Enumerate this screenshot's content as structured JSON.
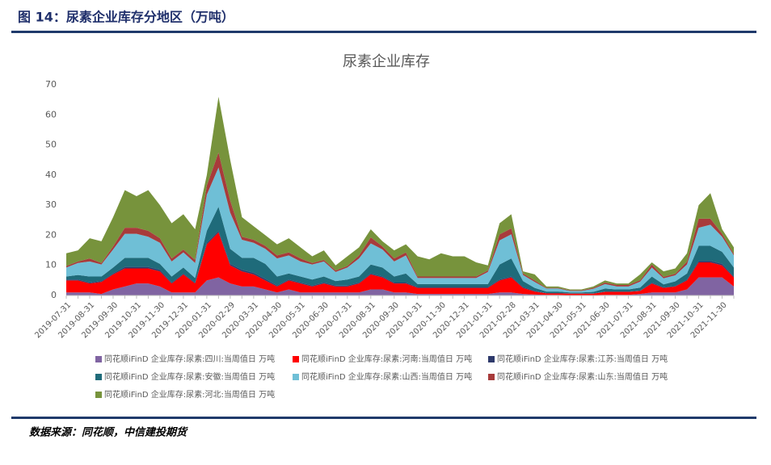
{
  "header": {
    "title": "图 14：尿素企业库存分地区（万吨）"
  },
  "footer": {
    "source": "数据来源：同花顺，中信建投期货"
  },
  "chart_data": {
    "type": "stacked_area",
    "title": "尿素企业库存",
    "categories": [
      "2019-07-31",
      null,
      "2019-08-31",
      null,
      "2019-09-30",
      null,
      "2019-10-31",
      null,
      "2019-11-30",
      null,
      "2019-12-31",
      null,
      "2020-01-31",
      null,
      "2020-02-29",
      null,
      "2020-03-31",
      null,
      "2020-04-30",
      null,
      "2020-05-31",
      null,
      "2020-06-30",
      null,
      "2020-07-31",
      null,
      "2020-08-31",
      null,
      "2020-09-30",
      null,
      "2020-10-31",
      null,
      "2020-11-30",
      null,
      "2020-12-31",
      null,
      "2021-01-31",
      null,
      "2021-02-28",
      null,
      "2021-03-31",
      null,
      "2021-04-30",
      null,
      "2021-05-31",
      null,
      "2021-06-30",
      null,
      "2021-07-31",
      null,
      "2021-08-31",
      null,
      "2021-09-30",
      null,
      "2021-10-31",
      null,
      "2021-11-30",
      null
    ],
    "ylim": [
      0,
      70
    ],
    "yticks": [
      0,
      10,
      20,
      30,
      40,
      50,
      60,
      70
    ],
    "legend": "bottom",
    "series": [
      {
        "name": "同花顺iFinD 企业库存:尿素:四川:当周值日 万吨",
        "color": "#8064a2",
        "values": [
          1,
          1,
          1,
          0.5,
          2,
          3,
          4,
          4,
          3,
          1,
          1,
          1,
          5,
          6,
          4,
          3,
          3,
          2,
          1,
          2,
          1,
          1,
          1,
          1,
          1,
          1,
          2,
          2,
          1,
          1,
          0.5,
          0.5,
          0.5,
          0.5,
          0.5,
          0.5,
          0.5,
          1,
          1,
          0.5,
          0.3,
          0.2,
          0.2,
          0.1,
          0.1,
          0.1,
          0.2,
          0.2,
          0.2,
          0.5,
          1,
          1,
          1,
          2,
          6,
          6,
          6,
          3
        ]
      },
      {
        "name": "同花顺iFinD 企业库存:尿素:河南:当周值日 万吨",
        "color": "#ff0000",
        "values": [
          4,
          4,
          3,
          4,
          5,
          6,
          5,
          5,
          5,
          3,
          6,
          3,
          12,
          15,
          6,
          5,
          4,
          3,
          2,
          3,
          3,
          2,
          3,
          2,
          2,
          3,
          5,
          4,
          3,
          3,
          2,
          2,
          2,
          2,
          2,
          2,
          2,
          4,
          5,
          2,
          1,
          0.5,
          0.5,
          0.5,
          0.5,
          0.5,
          1,
          1,
          1,
          1,
          3,
          1.5,
          2,
          3,
          5,
          5,
          4,
          3
        ]
      },
      {
        "name": "同花顺iFinD 企业库存:尿素:江苏:当周值日 万吨",
        "color": "#2e3a6b",
        "values": [
          0.3,
          0.3,
          0.3,
          0.3,
          0.3,
          0.5,
          0.5,
          0.5,
          0.5,
          0.3,
          0.3,
          0.3,
          0.5,
          0.5,
          0.5,
          0.5,
          0.5,
          0.5,
          0.3,
          0.3,
          0.3,
          0.3,
          0.3,
          0.3,
          0.3,
          0.3,
          0.3,
          0.3,
          0.3,
          0.3,
          0.3,
          0.3,
          0.3,
          0.3,
          0.3,
          0.3,
          0.3,
          0.3,
          0.3,
          0.3,
          0.2,
          0.1,
          0.1,
          0.1,
          0.1,
          0.1,
          0.1,
          0.1,
          0.1,
          0.1,
          0.3,
          0.2,
          0.2,
          0.3,
          0.5,
          0.5,
          0.5,
          0.3
        ]
      },
      {
        "name": "同花顺iFinD 企业库存:尿素:安徽:当周值日 万吨",
        "color": "#1f6b7a",
        "values": [
          1,
          1.5,
          2,
          1.5,
          2,
          3,
          3,
          3,
          2,
          2,
          2,
          1.5,
          4,
          8,
          5,
          4,
          5,
          5,
          3,
          2,
          2,
          2,
          2,
          1.5,
          2,
          2,
          3,
          3,
          2,
          3,
          1,
          1,
          1,
          1,
          1,
          1,
          1,
          5,
          6,
          2,
          1,
          0.5,
          0.5,
          0.3,
          0.3,
          0.5,
          1,
          0.7,
          0.7,
          1,
          2,
          1,
          1.5,
          2,
          5,
          5,
          4,
          3
        ]
      },
      {
        "name": "同花顺iFinD 企业库存:尿素:山西:当周值日 万吨",
        "color": "#6fbfd6",
        "values": [
          3,
          4,
          5,
          4,
          6,
          8,
          8,
          7,
          7,
          5,
          5,
          5,
          12,
          13,
          12,
          6,
          5,
          5,
          6,
          6,
          5,
          5,
          5,
          3,
          4,
          6,
          7,
          6,
          5,
          6,
          2,
          2,
          2,
          2,
          2,
          2,
          4,
          8,
          8,
          2,
          2,
          1,
          1,
          0.5,
          0.5,
          1,
          1.5,
          1,
          1,
          2,
          3,
          2,
          2,
          3,
          6,
          7,
          5,
          4
        ]
      },
      {
        "name": "同花顺iFinD 企业库存:尿素:山东:当周值日 万吨",
        "color": "#a83b3b",
        "values": [
          0.5,
          0.5,
          1,
          0.5,
          1,
          2,
          2,
          2,
          1.5,
          1,
          1,
          1,
          3,
          5,
          4,
          1,
          1,
          1,
          1,
          1,
          1,
          0.5,
          0.5,
          0.5,
          0.5,
          1,
          2,
          1,
          1,
          1,
          0.5,
          0.5,
          0.5,
          0.5,
          0.5,
          0.5,
          0.5,
          2,
          2,
          0.5,
          0.5,
          0.2,
          0.2,
          0.2,
          0.2,
          0.3,
          0.5,
          0.5,
          0.5,
          0.5,
          1,
          0.5,
          0.5,
          1,
          3,
          2,
          1,
          0.5
        ]
      },
      {
        "name": "同花顺iFinD 企业库存:尿素:河北:当周值日 万吨",
        "color": "#77933c",
        "values": [
          4.2,
          3.7,
          6.7,
          7.2,
          9.7,
          12.5,
          10.5,
          13.5,
          11,
          11.7,
          11.7,
          10.2,
          3.5,
          18.5,
          13.5,
          6.5,
          4.5,
          3.5,
          3.7,
          4.7,
          3.7,
          2.2,
          3.2,
          1.7,
          3.2,
          2.7,
          2.7,
          1.7,
          2.7,
          2.7,
          6.7,
          5.7,
          7.7,
          6.7,
          6.7,
          4.7,
          1.7,
          3.7,
          4.7,
          0.7,
          2,
          0.5,
          0.5,
          0.3,
          0.3,
          0.5,
          0.7,
          0.5,
          0.5,
          1.9,
          0.7,
          1.8,
          1.8,
          2.7,
          4.5,
          8.5,
          1.5,
          2.2
        ]
      }
    ]
  }
}
